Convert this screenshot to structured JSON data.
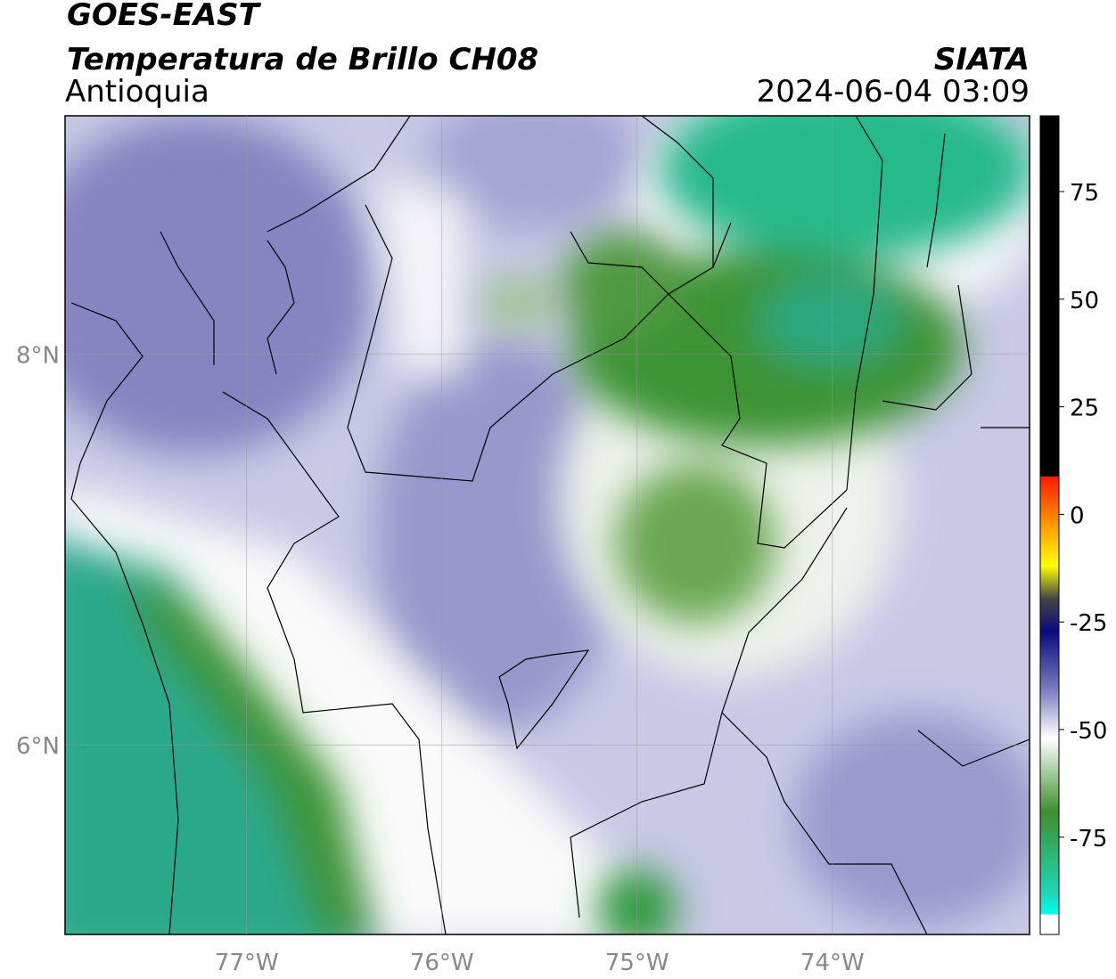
{
  "header": {
    "title": "GOES-EAST",
    "subtitle": "Temperatura de Brillo CH08",
    "region": "Antioquia",
    "source": "SIATA",
    "datetime": "2024-06-04 03:09"
  },
  "map": {
    "xlim": [
      -77.93,
      -72.99
    ],
    "ylim": [
      5.03,
      9.22
    ],
    "xticks": [
      {
        "value": -77,
        "label": "77°W"
      },
      {
        "value": -76,
        "label": "76°W"
      },
      {
        "value": -75,
        "label": "75°W"
      },
      {
        "value": -74,
        "label": "74°W"
      }
    ],
    "yticks": [
      {
        "value": 8,
        "label": "8°N"
      },
      {
        "value": 6,
        "label": "6°N"
      }
    ]
  },
  "colorbar": {
    "lim": [
      -97.6,
      92.6
    ],
    "ticks": [
      75,
      50,
      25,
      0,
      -25,
      -50,
      -75
    ]
  }
}
